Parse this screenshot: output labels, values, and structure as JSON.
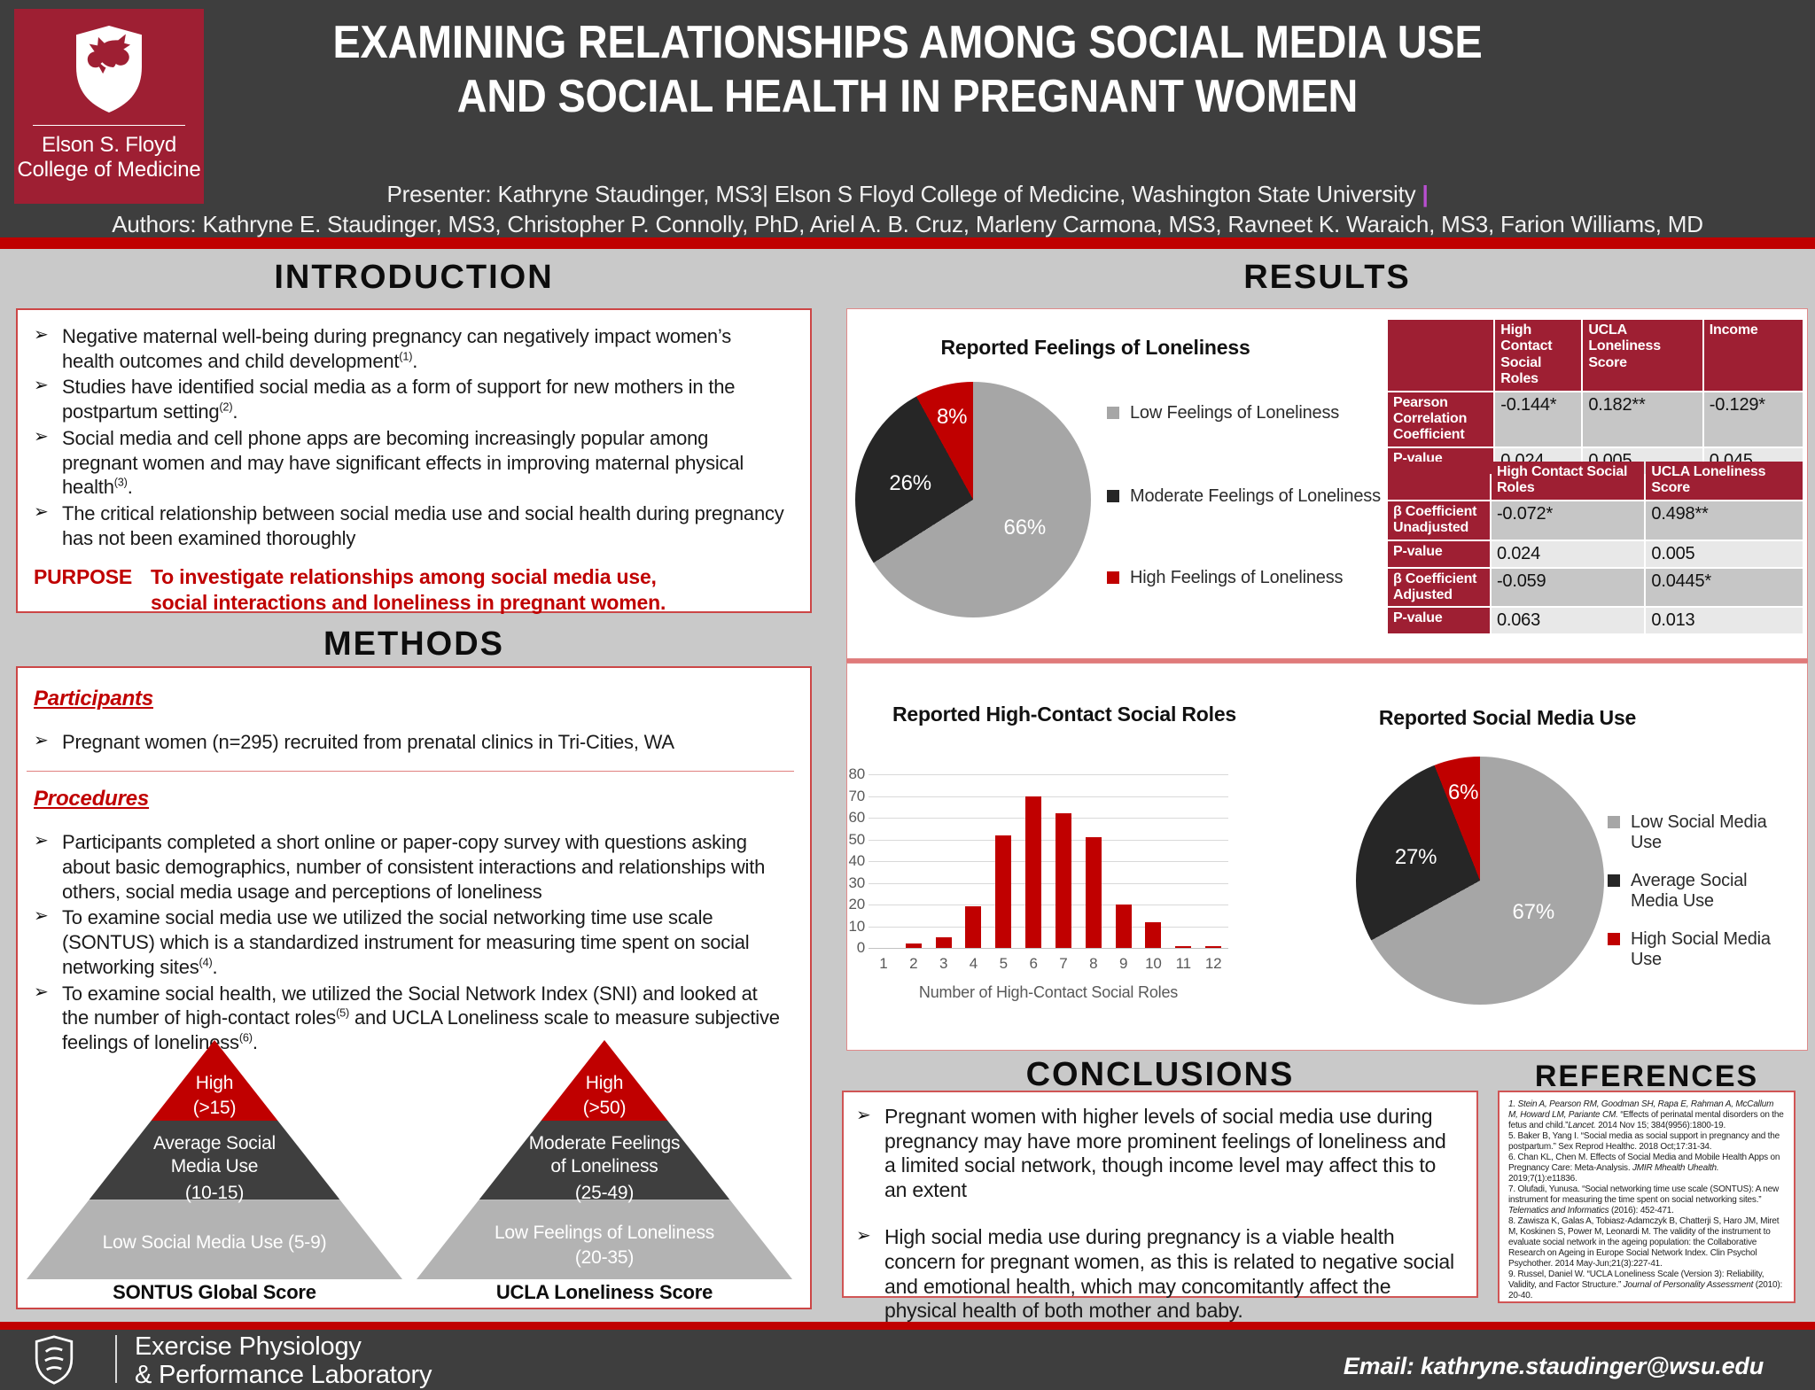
{
  "glyphs": {
    "bullet": "➢"
  },
  "colors": {
    "crimson": "#9e1f33",
    "accent_red": "#c00000",
    "banner_dark": "#3e3e3e",
    "body_bg": "#c9c9c9",
    "pie_gray": "#a6a6a6",
    "pie_dark": "#262626"
  },
  "header": {
    "title1": "EXAMINING RELATIONSHIPS AMONG SOCIAL MEDIA USE",
    "title2": "AND SOCIAL HEALTH IN PREGNANT WOMEN",
    "presenter": "Presenter: Kathryne Staudinger, MS3| Elson S Floyd College of Medicine, Washington State University ",
    "cursor": "|",
    "authors": "Authors: Kathryne E. Staudinger, MS3, Christopher P. Connolly, PhD, Ariel A. B. Cruz, Marleny Carmona, MS3, Ravneet K. Waraich, MS3, Farion Williams, MD",
    "logo_line1": "Elson S. Floyd",
    "logo_line2": "College of Medicine"
  },
  "intro": {
    "heading": "INTRODUCTION",
    "bullets": [
      [
        {
          "t": "Negative maternal well-being during pregnancy can negatively impact women’s health outcomes and child development"
        },
        {
          "sup": "(1)"
        },
        {
          "t": "."
        }
      ],
      [
        {
          "t": "Studies have identified social media as a form of support for new mothers in the postpartum setting"
        },
        {
          "sup": "(2)"
        },
        {
          "t": "."
        }
      ],
      [
        {
          "t": "Social media and cell phone apps are becoming increasingly popular among pregnant women and may have significant effects in improving maternal physical health"
        },
        {
          "sup": "(3)"
        },
        {
          "t": "."
        }
      ],
      [
        {
          "t": "The critical relationship between social media use and social health during pregnancy has not been examined thoroughly"
        }
      ]
    ],
    "purpose_label": "PURPOSE",
    "purpose_text": "To investigate relationships among social media use, social interactions and loneliness in pregnant women."
  },
  "methods": {
    "heading": "METHODS",
    "participants_heading": "Participants",
    "participants_bullets": [
      [
        {
          "t": "Pregnant women (n=295) recruited from prenatal clinics in Tri-Cities, WA"
        }
      ]
    ],
    "procedures_heading": "Procedures",
    "procedures_bullets": [
      [
        {
          "t": "Participants completed a short online or paper-copy survey with questions asking about basic demographics, number of consistent interactions and relationships with others, social media usage and perceptions of loneliness"
        }
      ],
      [
        {
          "t": "To examine social media use we utilized the social networking time use scale (SONTUS) which is a standardized instrument for measuring time spent on social networking sites"
        },
        {
          "sup": "(4)"
        },
        {
          "t": "."
        }
      ],
      [
        {
          "t": "To examine social health, we utilized the Social Network Index (SNI) and looked at the number of high-contact roles"
        },
        {
          "sup": "(5)"
        },
        {
          "t": " and UCLA Loneliness scale to measure subjective feelings of loneliness"
        },
        {
          "sup": "(6)"
        },
        {
          "t": "."
        }
      ]
    ]
  },
  "pyramids": {
    "p1": {
      "top1": "High",
      "top2": "(>15)",
      "mid1": "Average Social",
      "mid2": "Media Use",
      "mid3": "(10-15)",
      "bot1": "Low Social Media Use (5-9)",
      "bot2": "",
      "caption": "SONTUS Global Score"
    },
    "p2": {
      "top1": "High",
      "top2": "(>50)",
      "mid1": "Moderate Feelings",
      "mid2": "of Loneliness",
      "mid3": "(25-49)",
      "bot1": "Low Feelings of Loneliness",
      "bot2": "(20-35)",
      "caption": "UCLA Loneliness Score"
    }
  },
  "results": {
    "heading": "RESULTS",
    "table1": {
      "headers": [
        "",
        "High Contact Social Roles",
        "UCLA Loneliness Score",
        "Income"
      ],
      "rows": [
        {
          "label": "Pearson Correlation Coefficient",
          "cells": [
            "-0.144*",
            "0.182**",
            "-0.129*"
          ]
        },
        {
          "label": "P-value",
          "cells": [
            "0.024",
            "0.005",
            "0.045"
          ]
        }
      ]
    },
    "table2": {
      "headers": [
        "",
        "High Contact Social Roles",
        "UCLA Loneliness Score"
      ],
      "rows": [
        {
          "label": "β Coefficient Unadjusted",
          "cells": [
            "-0.072*",
            "0.498**"
          ]
        },
        {
          "label": "P-value",
          "cells": [
            "0.024",
            "0.005"
          ]
        },
        {
          "label": "β Coefficient Adjusted",
          "cells": [
            "-0.059",
            "0.0445*"
          ]
        },
        {
          "label": "P-value",
          "cells": [
            "0.063",
            "0.013"
          ]
        }
      ]
    }
  },
  "chart_data": [
    {
      "id": "loneliness_pie",
      "type": "pie",
      "title": "Reported Feelings of Loneliness",
      "labels": [
        "Low Feelings of Loneliness",
        "Moderate Feelings of Loneliness",
        "High Feelings of Loneliness"
      ],
      "values": [
        66,
        26,
        8
      ],
      "colors": [
        "#a6a6a6",
        "#262626",
        "#c00000"
      ],
      "legend_position": "right",
      "data_labels": [
        "66%",
        "26%",
        "8%"
      ]
    },
    {
      "id": "social_roles_bar",
      "type": "bar",
      "title": "Reported High-Contact Social Roles",
      "categories": [
        "1",
        "2",
        "3",
        "4",
        "5",
        "6",
        "7",
        "8",
        "9",
        "10",
        "11",
        "12"
      ],
      "values": [
        0,
        2,
        5,
        19,
        52,
        70,
        62,
        51,
        20,
        12,
        1,
        1
      ],
      "xlabel": "Number of High-Contact Social Roles",
      "ylabel": "",
      "ylim": [
        0,
        80
      ],
      "ytick_step": 10,
      "bar_color": "#c00000",
      "grid": true
    },
    {
      "id": "social_media_pie",
      "type": "pie",
      "title": "Reported Social Media Use",
      "labels": [
        "Low Social Media Use",
        "Average Social Media Use",
        "High Social Media Use"
      ],
      "values": [
        67,
        27,
        6
      ],
      "colors": [
        "#a6a6a6",
        "#262626",
        "#c00000"
      ],
      "legend_position": "right",
      "data_labels": [
        "67%",
        "27%",
        "6%"
      ]
    }
  ],
  "conclusions": {
    "heading": "CONCLUSIONS",
    "bullets": [
      [
        {
          "t": "Pregnant women with higher levels of social media use during pregnancy may have more prominent feelings of loneliness and a limited social network, though income level may affect this to an extent"
        }
      ],
      [
        {
          "t": "High social media use during pregnancy is a viable health concern for pregnant women, as this is related to negative social and emotional health, which may concomitantly affect the physical health of both mother and baby."
        }
      ]
    ]
  },
  "references": {
    "heading": "REFERENCES",
    "items": [
      [
        {
          "i": "1. Stein A, Pearson RM, Goodman SH, Rapa E, Rahman A, McCallum M, Howard LM, Pariante CM."
        },
        {
          "t": " “Effects of perinatal mental disorders on the fetus and child.”"
        },
        {
          "i": "Lancet."
        },
        {
          "t": " 2014 Nov 15; 384(9956):1800-19."
        }
      ],
      [
        {
          "t": "5. Baker B, Yang I. “Social media as social support in pregnancy and the postpartum.” Sex Reprod Healthc. 2018 Oct;17:31-34."
        }
      ],
      [
        {
          "t": "6. Chan KL, Chen M. Effects of Social Media and Mobile Health Apps on Pregnancy Care: Meta-Analysis. "
        },
        {
          "i": "JMIR Mhealth Uhealth."
        },
        {
          "t": " 2019;7(1):e11836."
        }
      ],
      [
        {
          "t": "7. Olufadi, Yunusa. “Social networking time use scale (SONTUS): A new instrument for measuring the time spent on social networking sites.” "
        },
        {
          "i": "Telematics and Informatics"
        },
        {
          "t": " (2016): 452-471."
        }
      ],
      [
        {
          "t": "8. Zawisza K, Galas A, Tobiasz-Adamczyk B, Chatterji S, Haro JM, Miret M, Koskinen S, Power M, Leonardi M. The validity of the instrument to evaluate social network in the ageing population: the Collaborative Research on Ageing in Europe Social Network Index. Clin Psychol Psychother. 2014 May-Jun;21(3):227-41."
        }
      ],
      [
        {
          "t": "9. Russel, Daniel W. “UCLA Loneliness Scale (Version 3): Reliability, Validity, and Factor Structure.” "
        },
        {
          "i": "Journal of Personality Assessment"
        },
        {
          "t": " (2010): 20-40."
        }
      ]
    ]
  },
  "footer": {
    "lab_line1": "Exercise Physiology",
    "lab_line2": "& Performance Laboratory",
    "email": "Email: kathryne.staudinger@wsu.edu"
  }
}
